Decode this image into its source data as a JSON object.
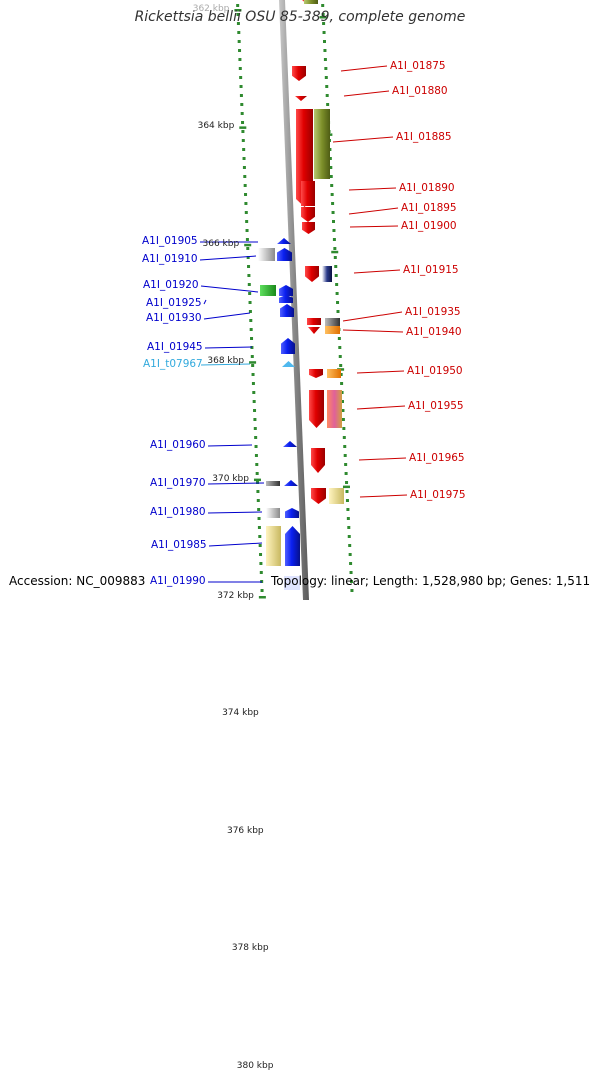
{
  "title": "Rickettsia bellii OSU 85-389, complete genome",
  "footer": {
    "accession": "Accession: NC_009883",
    "summary": "Topology: linear; Length: 1,528,980 bp; Genes: 1,511"
  },
  "scale_marks": [
    {
      "label": "362 kbp",
      "kbp": 362
    },
    {
      "label": "364 kbp",
      "kbp": 364
    },
    {
      "label": "366 kbp",
      "kbp": 366
    },
    {
      "label": "368 kbp",
      "kbp": 368
    },
    {
      "label": "370 kbp",
      "kbp": 370
    },
    {
      "label": "372 kbp",
      "kbp": 372
    },
    {
      "label": "374 kbp",
      "kbp": 374
    },
    {
      "label": "376 kbp",
      "kbp": 376
    },
    {
      "label": "378 kbp",
      "kbp": 378
    },
    {
      "label": "380 kbp",
      "kbp": 380
    }
  ],
  "right_labels": [
    {
      "text": "A1I_01875"
    },
    {
      "text": "A1I_01880"
    },
    {
      "text": "A1I_01885"
    },
    {
      "text": "A1I_01890"
    },
    {
      "text": "A1I_01895"
    },
    {
      "text": "A1I_01900"
    },
    {
      "text": "A1I_01915"
    },
    {
      "text": "A1I_01935"
    },
    {
      "text": "A1I_01940"
    },
    {
      "text": "A1I_01950"
    },
    {
      "text": "A1I_01955"
    },
    {
      "text": "A1I_01965"
    },
    {
      "text": "A1I_01975"
    }
  ],
  "left_labels": [
    {
      "text": "A1I_01905",
      "color": "blue"
    },
    {
      "text": "A1I_01910",
      "color": "blue"
    },
    {
      "text": "A1I_01920",
      "color": "blue"
    },
    {
      "text": "A1I_01925",
      "color": "blue"
    },
    {
      "text": "A1I_01930",
      "color": "blue"
    },
    {
      "text": "A1I_01945",
      "color": "blue"
    },
    {
      "text": "A1I_t07967",
      "color": "cyan"
    },
    {
      "text": "A1I_01960",
      "color": "blue"
    },
    {
      "text": "A1I_01970",
      "color": "blue"
    },
    {
      "text": "A1I_01980",
      "color": "blue"
    },
    {
      "text": "A1I_01985",
      "color": "blue"
    },
    {
      "text": "A1I_01990",
      "color": "blue"
    }
  ],
  "colors": {
    "forward_gene": "#0a1ff0",
    "reverse_gene": "#e00000",
    "trna": "#4fb8ee",
    "axis": "#888888",
    "track_dots": "#2f8a2f",
    "accent_olive": "#7d8f2a",
    "accent_orange": "#f08a00",
    "accent_pink": "#e0609a"
  }
}
